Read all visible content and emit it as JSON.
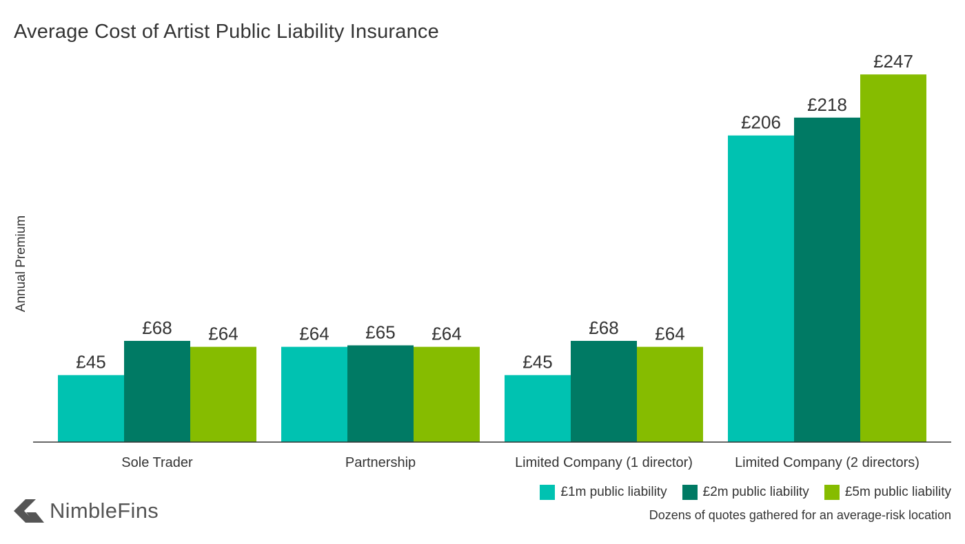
{
  "chart_data": {
    "type": "bar",
    "title": "Average Cost of Artist Public Liability Insurance",
    "ylabel": "Annual Premium",
    "xlabel": "",
    "ylim": [
      0,
      260
    ],
    "grid": false,
    "legend_placement": "bottom-right",
    "value_prefix": "£",
    "categories": [
      "Sole Trader",
      "Partnership",
      "Limited Company (1 director)",
      "Limited Company (2 directors)"
    ],
    "series": [
      {
        "name": "£1m public liability",
        "color": "#00c2b1",
        "values": [
          45,
          64,
          45,
          206
        ]
      },
      {
        "name": "£2m public liability",
        "color": "#007a64",
        "values": [
          68,
          65,
          68,
          218
        ]
      },
      {
        "name": "£5m public liability",
        "color": "#86bc00",
        "values": [
          64,
          64,
          64,
          247
        ]
      }
    ]
  },
  "footnote": "Dozens of quotes gathered for an average-risk location",
  "brand": {
    "name": "NimbleFins",
    "logo_icon": "nimblefins-logo-icon",
    "color": "#555555"
  }
}
